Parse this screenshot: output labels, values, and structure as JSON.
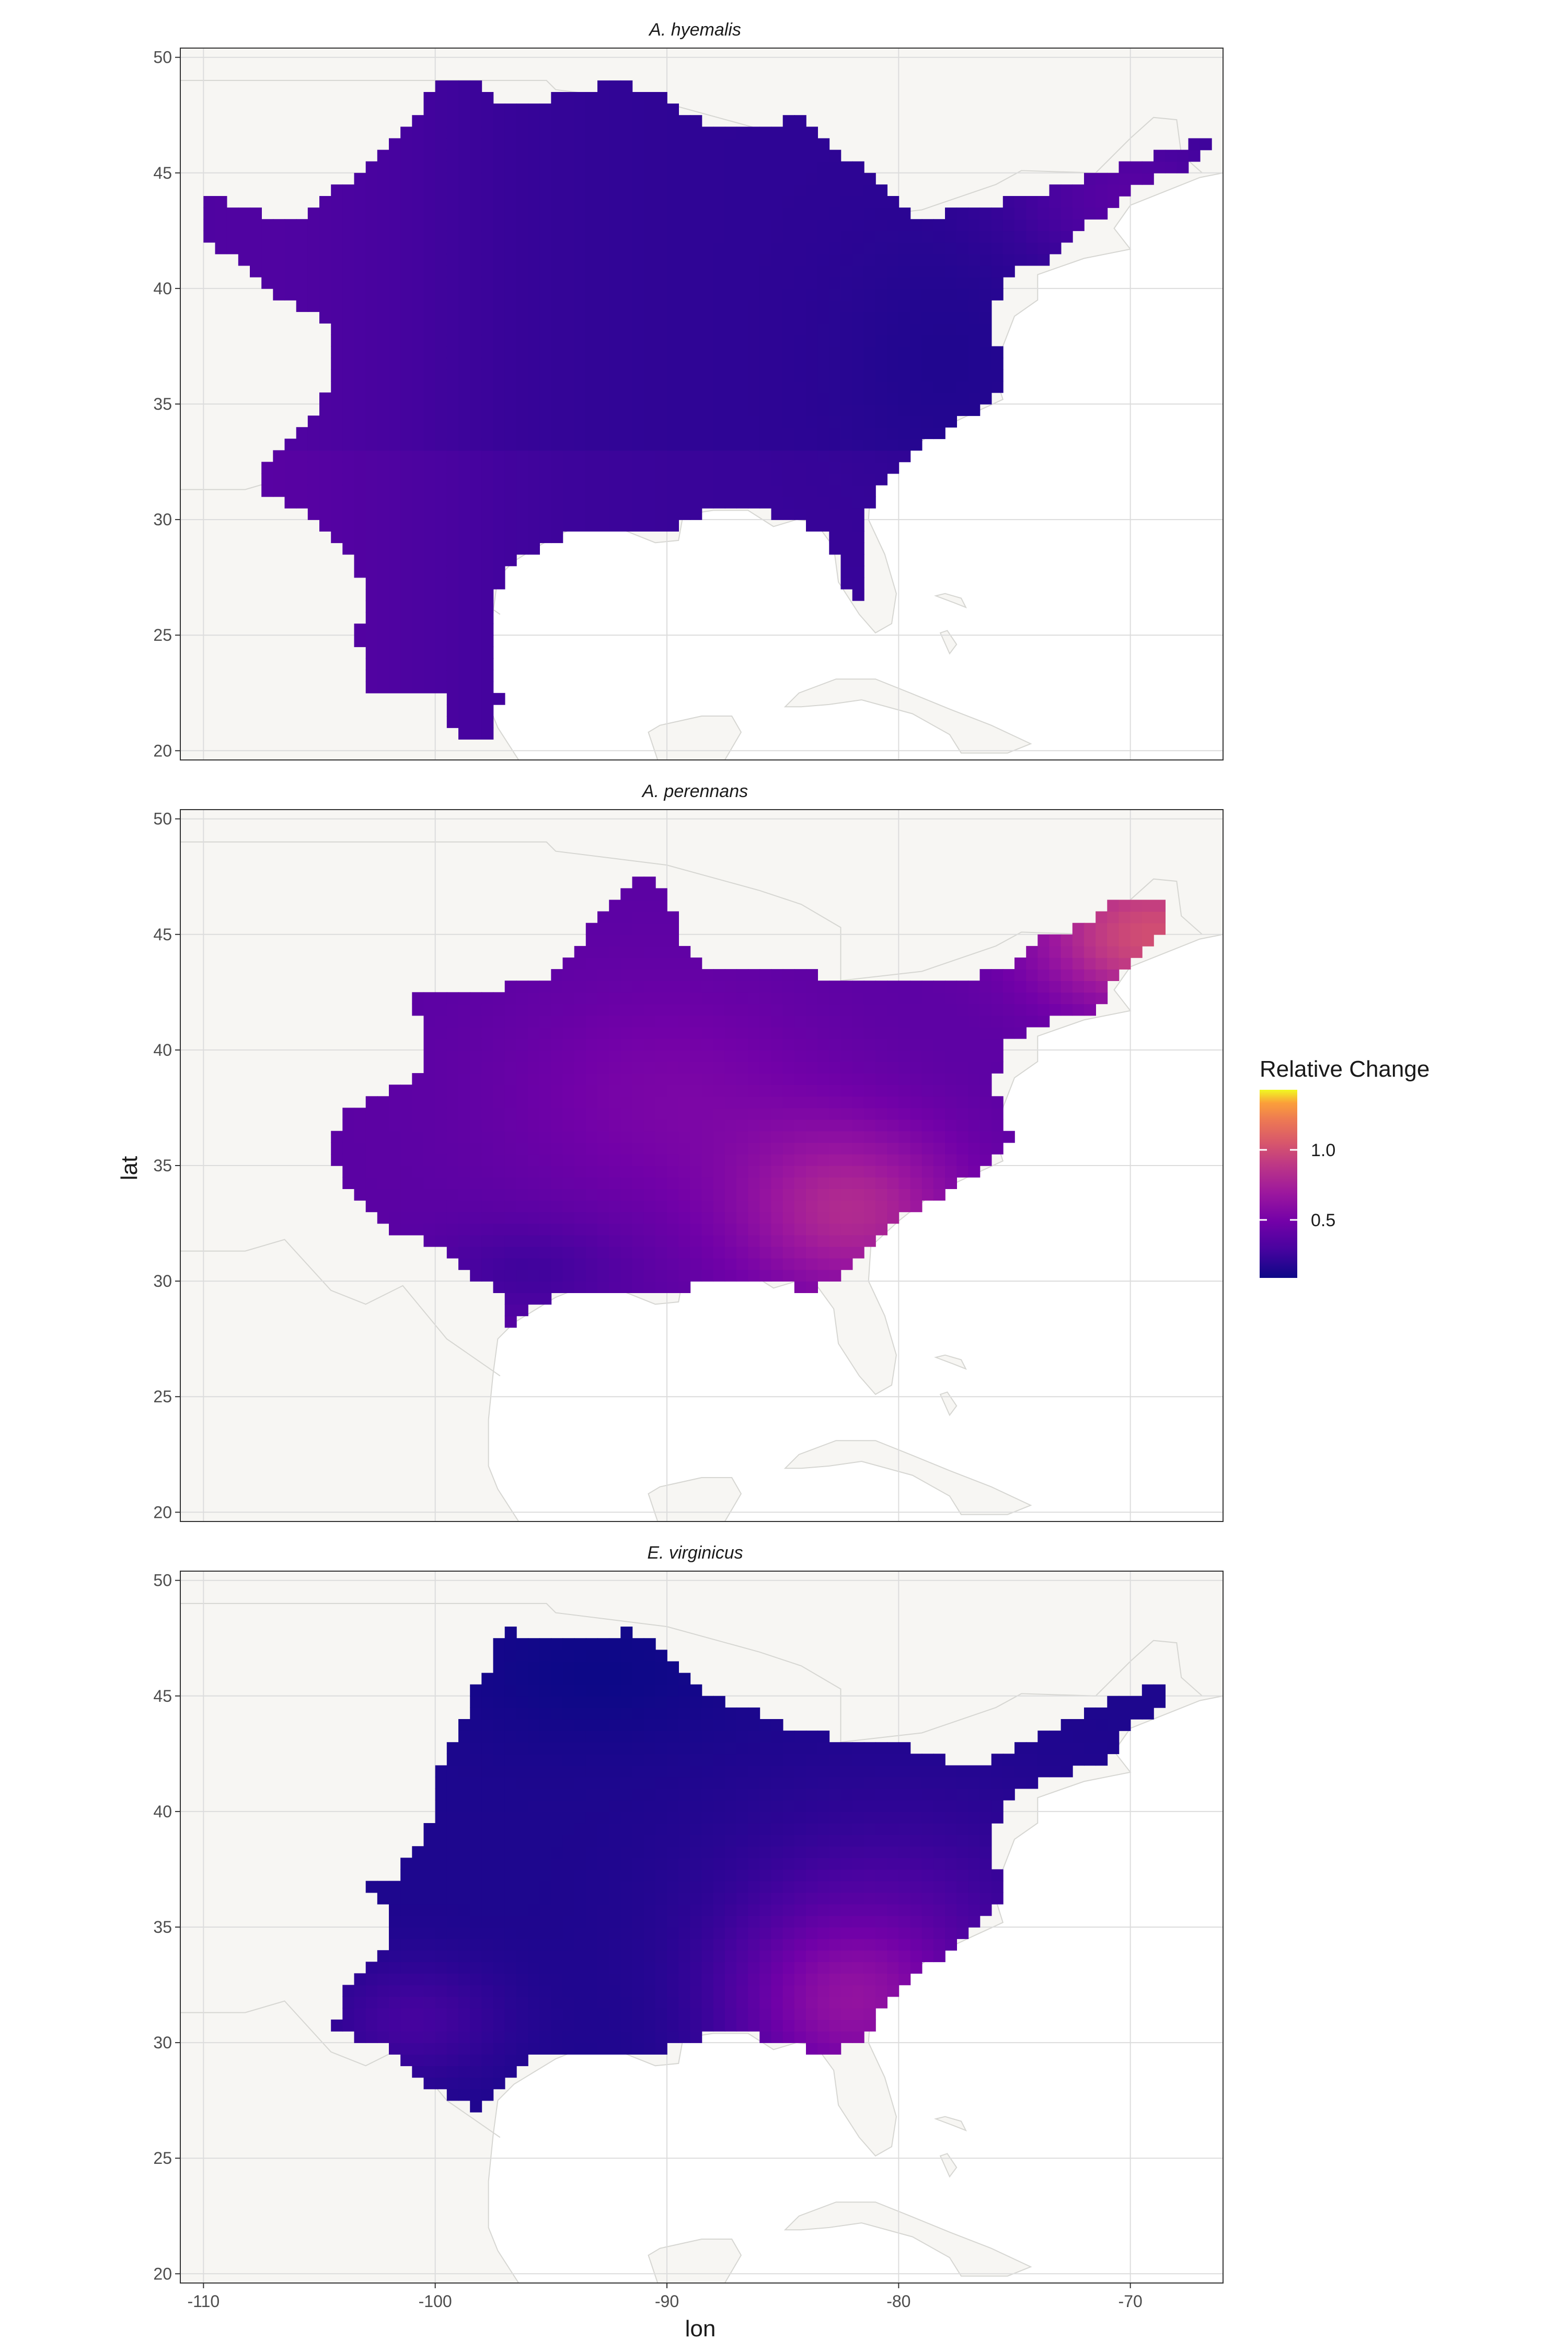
{
  "map": {
    "axes": {
      "x_label": "lon",
      "y_label": "lat",
      "x_ticks": [
        "-110",
        "-100",
        "-90",
        "-80",
        "-70"
      ],
      "y_ticks": [
        "50",
        "45",
        "40",
        "35",
        "30",
        "25",
        "20"
      ],
      "x_range": [
        -111,
        -66
      ],
      "y_range": [
        19.6,
        50.4
      ]
    },
    "legend": {
      "title": "Relative Change",
      "labels": [
        "1.0",
        "0.5"
      ],
      "scale": "plasma",
      "range": [
        0.1,
        1.45
      ],
      "position": "right"
    },
    "colors": {
      "panel_background": "#ffffff",
      "land": "#f7f6f3",
      "land_border": "#d6d6d2",
      "grid": "#dcdcdc",
      "plasma_low": "#0d0887",
      "plasma_high": "#f0f921"
    },
    "panels": [
      {
        "title": "A. hyemalis",
        "pattern": "cool-west",
        "mean_change": 0.25
      },
      {
        "title": "A. perennans",
        "pattern": "warm-northeast-southeast",
        "mean_change": 0.8
      },
      {
        "title": "E. virginicus",
        "pattern": "warm-southeast",
        "mean_change": 0.35
      }
    ]
  }
}
